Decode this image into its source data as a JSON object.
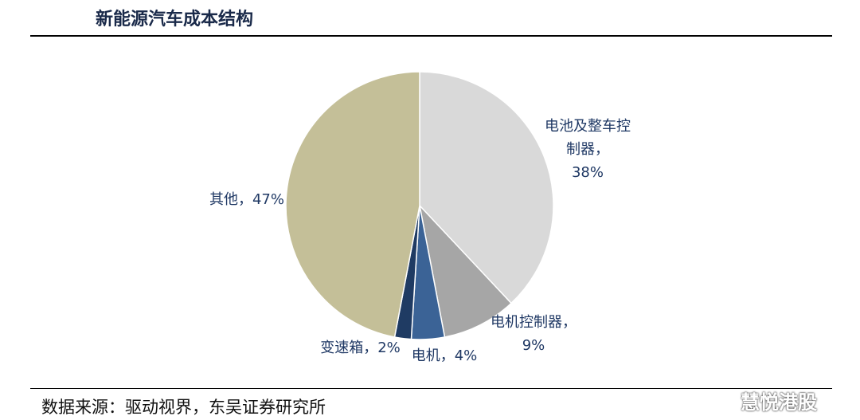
{
  "chart_data": {
    "type": "pie",
    "title": "新能源汽车成本结构",
    "categories": [
      "电池及整车控制器",
      "电机控制器",
      "电机",
      "变速箱",
      "其他"
    ],
    "values": [
      38,
      9,
      4,
      2,
      47
    ],
    "value_labels": [
      "38%",
      "9%",
      "4%",
      "2%",
      "47%"
    ],
    "label_separator": "，",
    "colors": [
      "#d9d9d9",
      "#a6a6a6",
      "#3b6396",
      "#1f3b63",
      "#c4bf98"
    ],
    "source": "数据来源：驱动视界，东吴证券研究所",
    "watermark": "慧悦港股"
  }
}
